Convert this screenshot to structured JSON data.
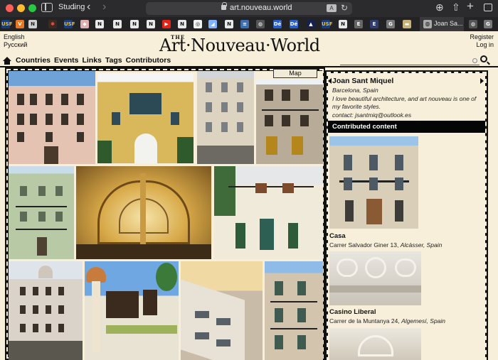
{
  "browser": {
    "profile": "Studing",
    "url": "art.nouveau.world",
    "active_tab_label": "Joan Sa..."
  },
  "header": {
    "languages": [
      "English",
      "Русский"
    ],
    "register_label": "Register",
    "login_label": "Log in",
    "logo_small": "THE",
    "logo_text": "Art·Nouveau·World"
  },
  "nav": {
    "items": [
      "Countries",
      "Events",
      "Links",
      "Tags",
      "Contributors"
    ]
  },
  "search": {
    "placeholder": ""
  },
  "gallery": {
    "map_label": "Map"
  },
  "profile": {
    "name": "Joan Sant Miquel",
    "location": "Barcelona, Spain",
    "bio": "I love beautiful architecture, and art nouveau is one of my favorite styles.",
    "contact": "contact: jsantmiq@outlook.es"
  },
  "contributed": {
    "heading": "Contributed content",
    "entries": [
      {
        "title": "Casa",
        "street": "Carrer Salvador Giner 13,",
        "city": "Alcàsser, Spain"
      },
      {
        "title": "Casino Liberal",
        "street": "Carrer de la Muntanya 24,",
        "city": "Algemesí, Spain"
      }
    ]
  },
  "colors": {
    "page_bg": "#f7efd9",
    "frame": "#111111"
  }
}
